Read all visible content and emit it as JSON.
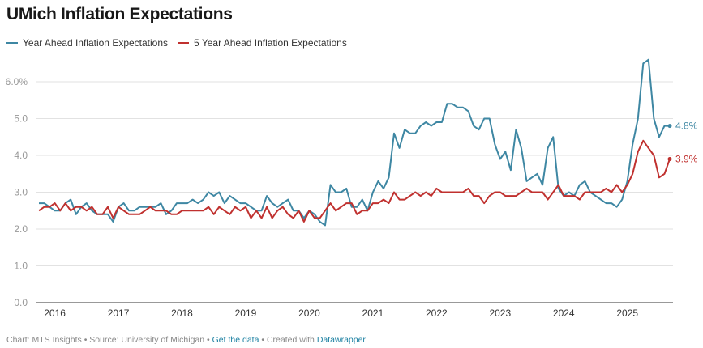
{
  "title": "UMich Inflation Expectations",
  "legend": [
    {
      "label": "Year Ahead Inflation Expectations",
      "color": "#3e87a3"
    },
    {
      "label": "5 Year Ahead Inflation Expectations",
      "color": "#c0312f"
    }
  ],
  "footer": {
    "chart_prefix": "Chart: MTS Insights",
    "separator": " • ",
    "source": "Source: University of Michigan",
    "get_data": "Get the data",
    "created_with": "Created with",
    "datawrapper": "Datawrapper"
  },
  "chart_data": {
    "type": "line",
    "title": "UMich Inflation Expectations",
    "xlabel": "",
    "ylabel": "",
    "ylim": [
      0,
      6.0
    ],
    "yticks": [
      0.0,
      1.0,
      2.0,
      3.0,
      4.0,
      5.0,
      6.0
    ],
    "ytick_labels": [
      "0.0",
      "1.0",
      "2.0",
      "3.0",
      "4.0",
      "5.0",
      "6.0%"
    ],
    "xticks": [
      "2016",
      "2017",
      "2018",
      "2019",
      "2020",
      "2021",
      "2022",
      "2023",
      "2024",
      "2025"
    ],
    "x_start": "2015-10",
    "x_end": "2025-09",
    "grid": true,
    "legend_position": "top-left",
    "series": [
      {
        "name": "Year Ahead Inflation Expectations",
        "color": "#3e87a3",
        "end_label": "4.8%",
        "values": [
          2.7,
          2.7,
          2.6,
          2.5,
          2.5,
          2.7,
          2.8,
          2.4,
          2.6,
          2.7,
          2.5,
          2.4,
          2.4,
          2.4,
          2.2,
          2.6,
          2.7,
          2.5,
          2.5,
          2.6,
          2.6,
          2.6,
          2.6,
          2.7,
          2.4,
          2.5,
          2.7,
          2.7,
          2.7,
          2.8,
          2.7,
          2.8,
          3.0,
          2.9,
          3.0,
          2.7,
          2.9,
          2.8,
          2.7,
          2.7,
          2.6,
          2.5,
          2.5,
          2.9,
          2.7,
          2.6,
          2.7,
          2.8,
          2.5,
          2.5,
          2.3,
          2.5,
          2.4,
          2.2,
          2.1,
          3.2,
          3.0,
          3.0,
          3.1,
          2.6,
          2.6,
          2.8,
          2.5,
          3.0,
          3.3,
          3.1,
          3.4,
          4.6,
          4.2,
          4.7,
          4.6,
          4.6,
          4.8,
          4.9,
          4.8,
          4.9,
          4.9,
          5.4,
          5.4,
          5.3,
          5.3,
          5.2,
          4.8,
          4.7,
          5.0,
          5.0,
          4.3,
          3.9,
          4.1,
          3.6,
          4.7,
          4.2,
          3.3,
          3.4,
          3.5,
          3.2,
          4.2,
          4.5,
          3.1,
          2.9,
          3.0,
          2.9,
          3.2,
          3.3,
          3.0,
          2.9,
          2.8,
          2.7,
          2.7,
          2.6,
          2.8,
          3.3,
          4.3,
          5.0,
          6.5,
          6.6,
          5.0,
          4.5,
          4.8,
          4.8
        ]
      },
      {
        "name": "5 Year Ahead Inflation Expectations",
        "color": "#c0312f",
        "end_label": "3.9%",
        "values": [
          2.5,
          2.6,
          2.6,
          2.7,
          2.5,
          2.7,
          2.5,
          2.6,
          2.6,
          2.5,
          2.6,
          2.4,
          2.4,
          2.6,
          2.3,
          2.6,
          2.5,
          2.4,
          2.4,
          2.4,
          2.5,
          2.6,
          2.5,
          2.5,
          2.5,
          2.4,
          2.4,
          2.5,
          2.5,
          2.5,
          2.5,
          2.5,
          2.6,
          2.4,
          2.6,
          2.5,
          2.4,
          2.6,
          2.5,
          2.6,
          2.3,
          2.5,
          2.3,
          2.6,
          2.3,
          2.5,
          2.6,
          2.4,
          2.3,
          2.5,
          2.2,
          2.5,
          2.3,
          2.3,
          2.5,
          2.7,
          2.5,
          2.6,
          2.7,
          2.7,
          2.4,
          2.5,
          2.5,
          2.7,
          2.7,
          2.8,
          2.7,
          3.0,
          2.8,
          2.8,
          2.9,
          3.0,
          2.9,
          3.0,
          2.9,
          3.1,
          3.0,
          3.0,
          3.0,
          3.0,
          3.0,
          3.1,
          2.9,
          2.9,
          2.7,
          2.9,
          3.0,
          3.0,
          2.9,
          2.9,
          2.9,
          3.0,
          3.1,
          3.0,
          3.0,
          3.0,
          2.8,
          3.0,
          3.2,
          2.9,
          2.9,
          2.9,
          2.8,
          3.0,
          3.0,
          3.0,
          3.0,
          3.1,
          3.0,
          3.2,
          3.0,
          3.2,
          3.5,
          4.1,
          4.4,
          4.2,
          4.0,
          3.4,
          3.5,
          3.9
        ]
      }
    ]
  }
}
